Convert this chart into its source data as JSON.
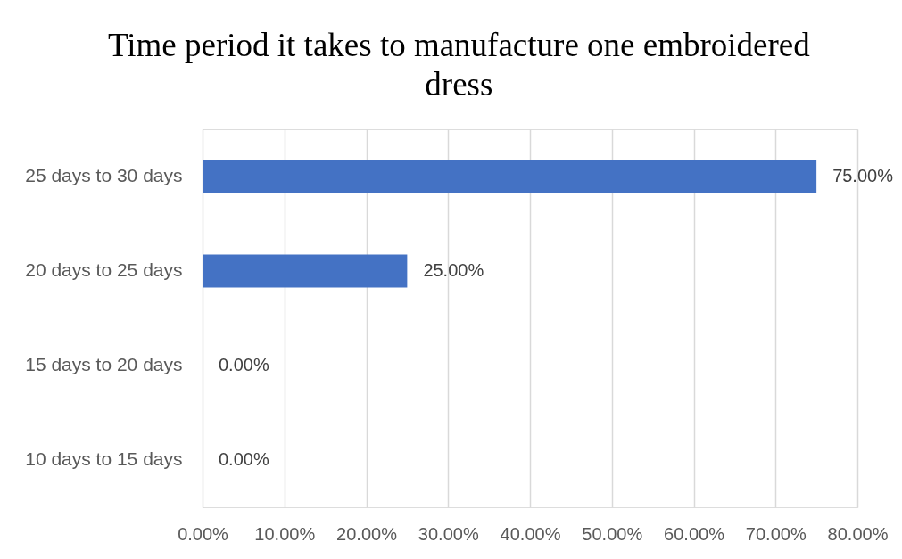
{
  "chart_data": {
    "type": "bar",
    "orientation": "horizontal",
    "title": "Time period it takes to manufacture one embroidered dress",
    "categories": [
      "25 days to 30 days",
      "20 days to 25 days",
      "15 days to 20 days",
      "10 days to 15 days"
    ],
    "values": [
      75,
      25,
      0,
      0
    ],
    "color": "#4472c4",
    "value_labels": [
      "75.00%",
      "25.00%",
      "0.00%",
      "0.00%"
    ],
    "xlim": [
      0,
      80
    ],
    "xticks": [
      {
        "value": 0,
        "label": "0.00%"
      },
      {
        "value": 10,
        "label": "10.00%"
      },
      {
        "value": 20,
        "label": "20.00%"
      },
      {
        "value": 30,
        "label": "30.00%"
      },
      {
        "value": 40,
        "label": "40.00%"
      },
      {
        "value": 50,
        "label": "50.00%"
      },
      {
        "value": 60,
        "label": "60.00%"
      },
      {
        "value": 70,
        "label": "70.00%"
      },
      {
        "value": 80,
        "label": "80.00%"
      }
    ],
    "grid": "x"
  }
}
